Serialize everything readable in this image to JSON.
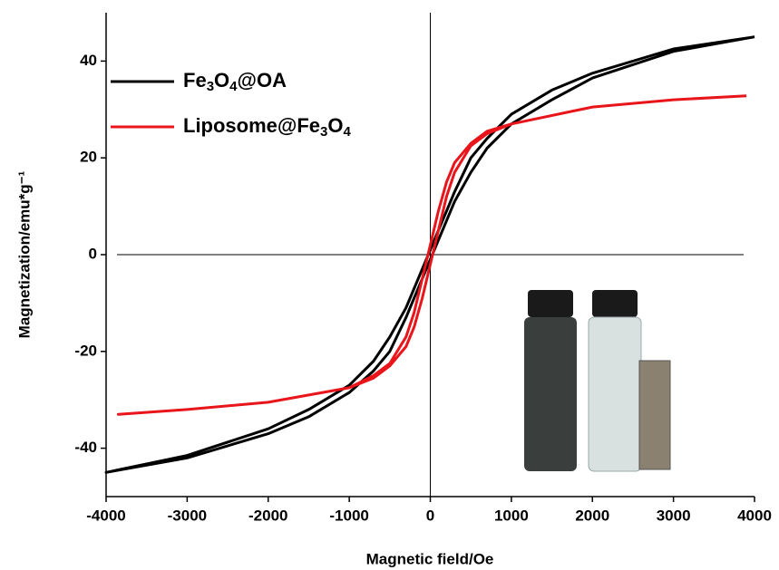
{
  "chart_data": {
    "type": "line",
    "xlabel": "Magnetic field/Oe",
    "ylabel": "Magnetization/emu*g⁻¹",
    "xlim": [
      -4000,
      4000
    ],
    "xticks": [
      -4000,
      -3000,
      -2000,
      -1000,
      0,
      1000,
      2000,
      3000,
      4000
    ],
    "ylim": [
      -50,
      50
    ],
    "yticks": [
      -40,
      -20,
      0,
      20,
      40
    ],
    "legend": "upper-left",
    "series": [
      {
        "name": "Fe3O4@OA",
        "color": "#000000",
        "x": [
          4000,
          3000,
          2000,
          1500,
          1000,
          700,
          500,
          300,
          200,
          100,
          0,
          -100,
          -200,
          -300,
          -500,
          -700,
          -1000,
          -1500,
          -2000,
          -3000,
          -4000,
          -3000,
          -2000,
          -1500,
          -1000,
          -700,
          -500,
          -300,
          -200,
          -100,
          0,
          100,
          200,
          300,
          500,
          700,
          1000,
          1500,
          2000,
          3000,
          4000
        ],
        "values": [
          45,
          42.5,
          37.5,
          34,
          29,
          24,
          20,
          13,
          9,
          5,
          1,
          -3,
          -7,
          -11,
          -17,
          -22,
          -27,
          -32,
          -36,
          -41.5,
          -45,
          -42,
          -37,
          -33.5,
          -28.5,
          -24,
          -20,
          -13,
          -9,
          -5,
          -1,
          3,
          7,
          11,
          17,
          22,
          27,
          32,
          36.5,
          42,
          45
        ]
      },
      {
        "name": "Liposome@Fe3O4",
        "color": "#e8151b",
        "x": [
          3900,
          3000,
          2000,
          1000,
          700,
          500,
          300,
          200,
          100,
          0,
          -100,
          -200,
          -300,
          -500,
          -700,
          -1000,
          -2000,
          -3000,
          -3850,
          -3000,
          -2000,
          -1000,
          -700,
          -500,
          -300,
          -200,
          -100,
          0,
          100,
          200,
          300,
          500,
          700,
          1000,
          2000,
          3000,
          3900
        ],
        "values": [
          32.8,
          32,
          30.5,
          27,
          25.5,
          23,
          19,
          15,
          9,
          2,
          -5,
          -12,
          -17,
          -22.5,
          -25,
          -27.5,
          -30.5,
          -32,
          -33,
          -32,
          -30.5,
          -27.5,
          -25.5,
          -23,
          -19,
          -15,
          -9,
          -2,
          5,
          12,
          17,
          22.5,
          25,
          27,
          30.5,
          32,
          32.8
        ]
      }
    ]
  }
}
